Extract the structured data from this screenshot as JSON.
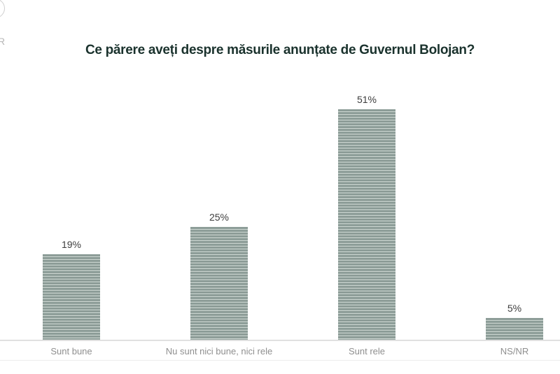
{
  "page": {
    "background": "#ffffff",
    "logo": {
      "letter": "R",
      "color": "#b7b7b7"
    }
  },
  "chart_data": {
    "type": "bar",
    "title": "Ce părere aveți despre măsurile anunțate de Guvernul Bolojan?",
    "categories": [
      "Sunt bune",
      "Nu sunt nici bune, nici rele",
      "Sunt rele",
      "NS/NR"
    ],
    "values": [
      19,
      25,
      51,
      5
    ],
    "value_labels": [
      "19%",
      "25%",
      "51%",
      "5%"
    ],
    "xlabel": "",
    "ylabel": "",
    "ylim": [
      0,
      55
    ],
    "grid": false,
    "legend": false,
    "bar_style": {
      "pattern": "horizontal-stripes",
      "base_color": "#8d9d98",
      "stripe_color": "#cdd7d2"
    },
    "title_color": "#1a322d",
    "value_label_color": "#3d3d3d",
    "category_label_color": "#8f8f8f",
    "axis_line_color": "#e0e0e0"
  }
}
